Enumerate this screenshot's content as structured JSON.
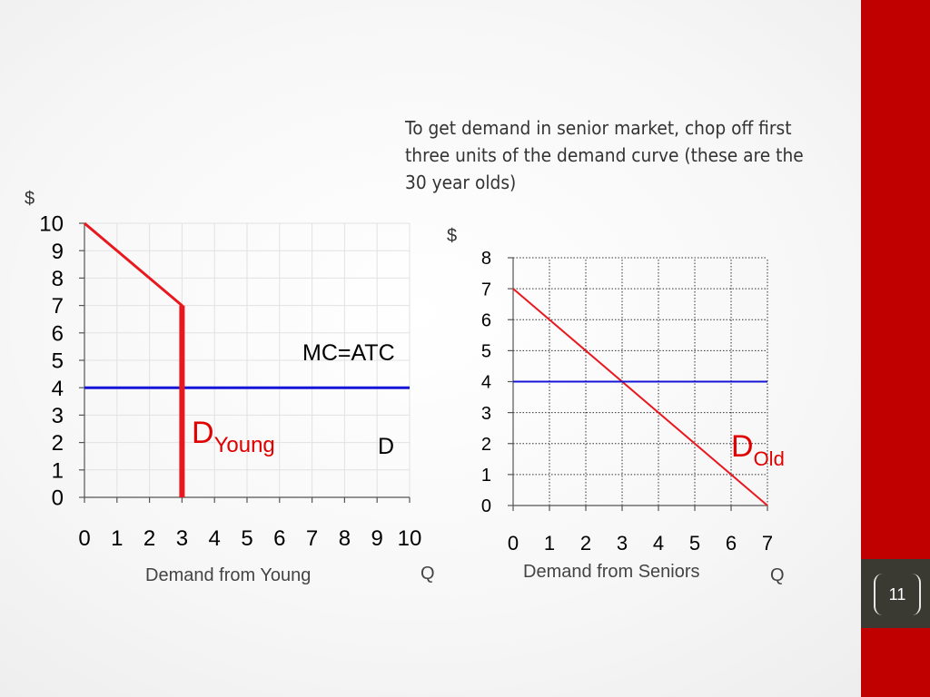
{
  "note_text": "To get demand in senior market, chop off first three units of the demand curve (these are the 30 year olds)",
  "page_number": "11",
  "colors": {
    "sidebar": "#c00000",
    "demand": "#e8181e",
    "mc": "#1515d8",
    "label_red": "#e00000"
  },
  "chart_data": [
    {
      "name": "young",
      "type": "line",
      "dollar_label": "$",
      "xlabel": "Demand from Young",
      "q_label": "Q",
      "x_ticks": [
        "0",
        "1",
        "2",
        "3",
        "4",
        "5",
        "6",
        "7",
        "8",
        "9",
        "10"
      ],
      "y_ticks": [
        "0",
        "1",
        "2",
        "3",
        "4",
        "5",
        "6",
        "7",
        "8",
        "9",
        "10"
      ],
      "xlim": [
        0,
        10
      ],
      "ylim": [
        0,
        10
      ],
      "grid": true,
      "series": [
        {
          "name": "demand",
          "points": [
            [
              0,
              10
            ],
            [
              3,
              7
            ],
            [
              3,
              0
            ]
          ]
        },
        {
          "name": "mc",
          "points": [
            [
              0,
              4
            ],
            [
              10,
              4
            ]
          ]
        }
      ],
      "mc_label": "MC=ATC",
      "demand_label": {
        "main": "D",
        "sub": "Young"
      },
      "d_label": "D"
    },
    {
      "name": "seniors",
      "type": "line",
      "dollar_label": "$",
      "xlabel": "Demand from Seniors",
      "q_label": "Q",
      "x_ticks": [
        "0",
        "1",
        "2",
        "3",
        "4",
        "5",
        "6",
        "7"
      ],
      "y_ticks": [
        "0",
        "1",
        "2",
        "3",
        "4",
        "5",
        "6",
        "7",
        "8"
      ],
      "xlim": [
        0,
        7
      ],
      "ylim": [
        0,
        8
      ],
      "grid": true,
      "series": [
        {
          "name": "demand",
          "points": [
            [
              0,
              7
            ],
            [
              7,
              0
            ]
          ]
        },
        {
          "name": "mc",
          "points": [
            [
              0,
              4
            ],
            [
              7,
              4
            ]
          ]
        }
      ],
      "demand_label": {
        "main": "D",
        "sub": "Old"
      }
    }
  ]
}
